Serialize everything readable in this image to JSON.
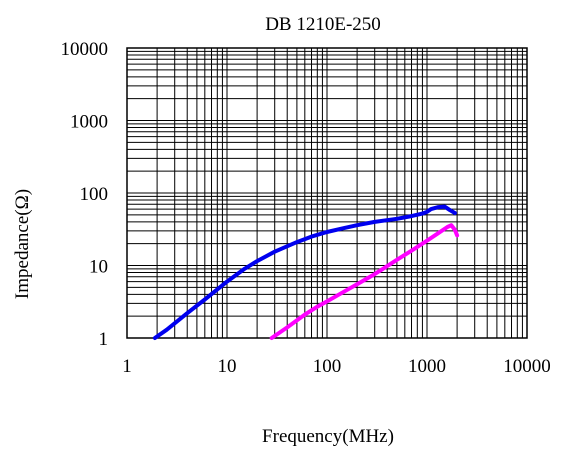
{
  "chart_data": {
    "type": "line",
    "title": "DB 1210E-250",
    "xlabel": "Frequency(MHz)",
    "ylabel": "Impedance(Ω)",
    "x_scale": "log",
    "y_scale": "log",
    "xlim": [
      1,
      10000
    ],
    "ylim": [
      1,
      10000
    ],
    "x_ticks": [
      "1",
      "10",
      "100",
      "1000",
      "10000"
    ],
    "y_ticks": [
      "1",
      "10",
      "100",
      "1000",
      "10000"
    ],
    "grid": true,
    "legend": "none",
    "series": [
      {
        "color": "#0000ee",
        "points": [
          [
            1.9,
            1.0
          ],
          [
            2.5,
            1.3
          ],
          [
            4,
            2.2
          ],
          [
            6,
            3.4
          ],
          [
            10,
            6.0
          ],
          [
            15,
            9.0
          ],
          [
            20,
            11.5
          ],
          [
            30,
            15.5
          ],
          [
            50,
            21
          ],
          [
            70,
            25
          ],
          [
            100,
            29
          ],
          [
            150,
            33
          ],
          [
            200,
            36
          ],
          [
            300,
            40
          ],
          [
            500,
            44
          ],
          [
            700,
            48
          ],
          [
            900,
            52
          ],
          [
            1000,
            55
          ],
          [
            1100,
            60
          ],
          [
            1300,
            64
          ],
          [
            1500,
            65
          ],
          [
            1700,
            58
          ],
          [
            1900,
            53
          ]
        ]
      },
      {
        "color": "#ff00ff",
        "points": [
          [
            28,
            1.0
          ],
          [
            40,
            1.4
          ],
          [
            60,
            2.1
          ],
          [
            80,
            2.7
          ],
          [
            100,
            3.2
          ],
          [
            150,
            4.4
          ],
          [
            200,
            5.5
          ],
          [
            300,
            7.6
          ],
          [
            400,
            9.8
          ],
          [
            500,
            12
          ],
          [
            700,
            16
          ],
          [
            1000,
            22
          ],
          [
            1300,
            28
          ],
          [
            1600,
            34
          ],
          [
            1750,
            36
          ],
          [
            1900,
            31
          ],
          [
            2000,
            26
          ]
        ]
      }
    ]
  }
}
